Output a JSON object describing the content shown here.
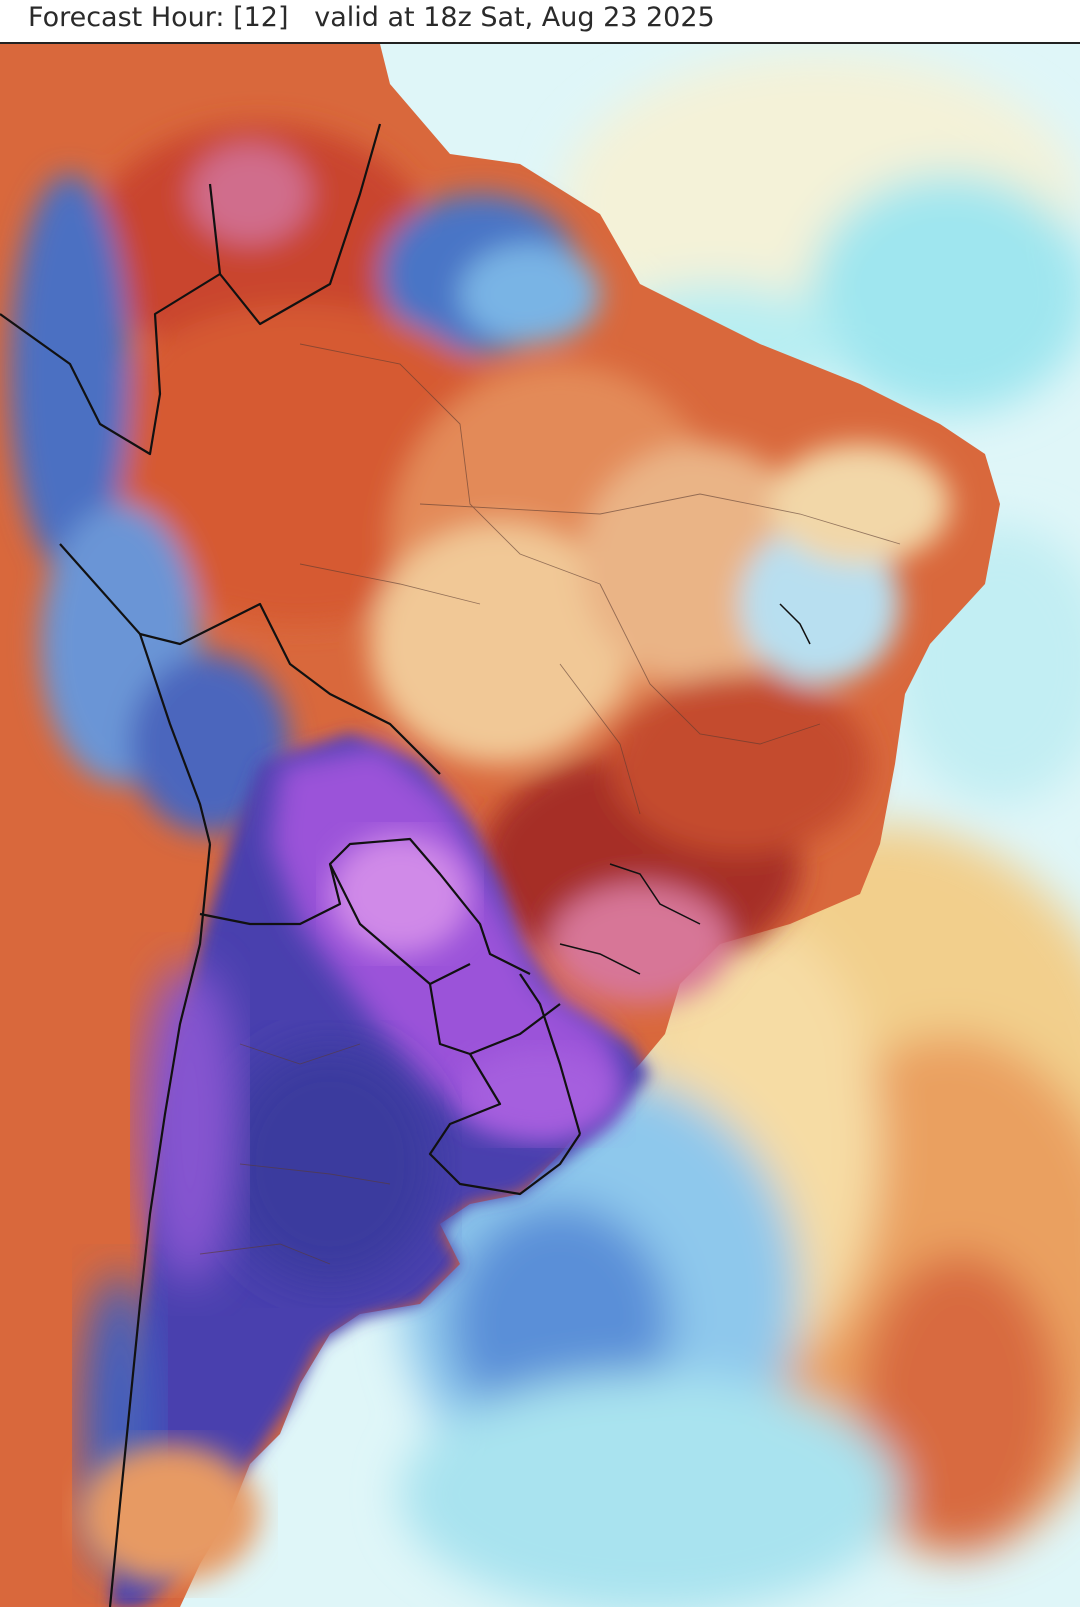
{
  "header": {
    "forecast_label": "Forecast Hour: [12]",
    "valid_label": "valid at 18z Sat, Aug 23 2025"
  },
  "map": {
    "region": "South America",
    "field": "temperature anomaly",
    "colors": {
      "ocean_light": "#c9f0f5",
      "ocean_cyan": "#8ee4ee",
      "ocean_blue": "#5b8fd6",
      "warm_cream": "#f6dfa3",
      "warm_orange": "#e8905a",
      "hot_red": "#c84a2c",
      "deep_red": "#a02a24",
      "pink": "#d9789a",
      "cold_purple": "#9b52d9",
      "cold_violet": "#c47ce8",
      "cold_navy": "#3e3fa8",
      "border": "#111111"
    }
  }
}
